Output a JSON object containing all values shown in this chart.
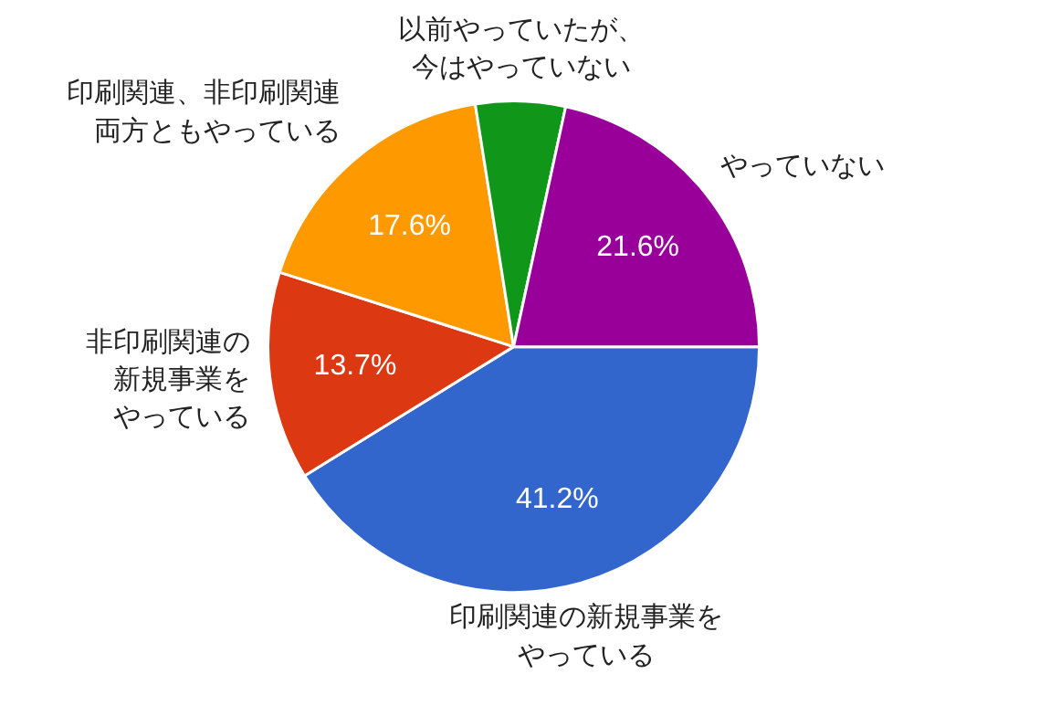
{
  "chart_data": {
    "type": "pie",
    "categories": [
      "印刷関連の新規事業をやっている",
      "非印刷関連の新規事業をやっている",
      "印刷関連、非印刷関連両方ともやっている",
      "以前やっていたが、今はやっていない",
      "やっていない"
    ],
    "values": [
      41.2,
      13.7,
      17.6,
      5.9,
      21.6
    ],
    "colors": [
      "#3366cc",
      "#dc3912",
      "#ff9900",
      "#109618",
      "#990099"
    ],
    "value_labels": [
      "41.2%",
      "13.7%",
      "17.6%",
      null,
      "21.6%"
    ]
  }
}
